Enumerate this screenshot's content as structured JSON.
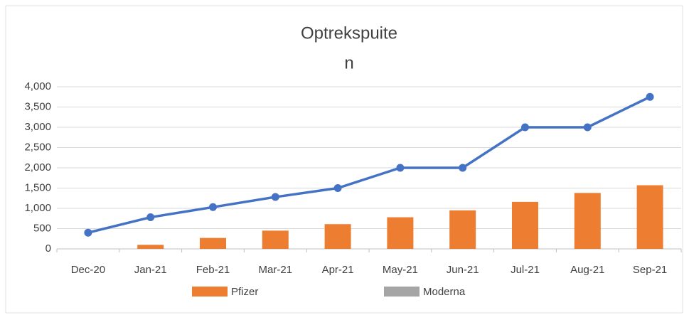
{
  "chart_data": {
    "type": "bar-line",
    "title": [
      "Optrekspuite",
      "n"
    ],
    "categories": [
      "Dec-20",
      "Jan-21",
      "Feb-21",
      "Mar-21",
      "Apr-21",
      "May-21",
      "Jun-21",
      "Jul-21",
      "Aug-21",
      "Sep-21"
    ],
    "series": [
      {
        "name": "Pfizer",
        "kind": "bar",
        "color": "#ed7d31",
        "values": [
          null,
          100,
          270,
          450,
          610,
          780,
          950,
          1160,
          1380,
          1570
        ]
      },
      {
        "name": "Moderna",
        "kind": "bar",
        "color": "#a5a5a5",
        "values": [
          0,
          0,
          0,
          0,
          0,
          0,
          0,
          0,
          0,
          0
        ]
      },
      {
        "kind": "line",
        "color": "#4472c4",
        "values": [
          400,
          780,
          1030,
          1280,
          1500,
          2000,
          2000,
          3000,
          3000,
          3750
        ]
      }
    ],
    "ylim": [
      0,
      4000
    ],
    "yticks": [
      0,
      500,
      {
        "value": 1000,
        "label": "1,000"
      },
      {
        "value": 1500,
        "label": "1,500"
      },
      {
        "value": 2000,
        "label": "2,000"
      },
      {
        "value": 2500,
        "label": "2,500"
      },
      {
        "value": 3000,
        "label": "3,000"
      },
      {
        "value": 3500,
        "label": "3,500"
      },
      {
        "value": 4000,
        "label": "4,000"
      }
    ],
    "grid": true,
    "legend": "bottom"
  }
}
